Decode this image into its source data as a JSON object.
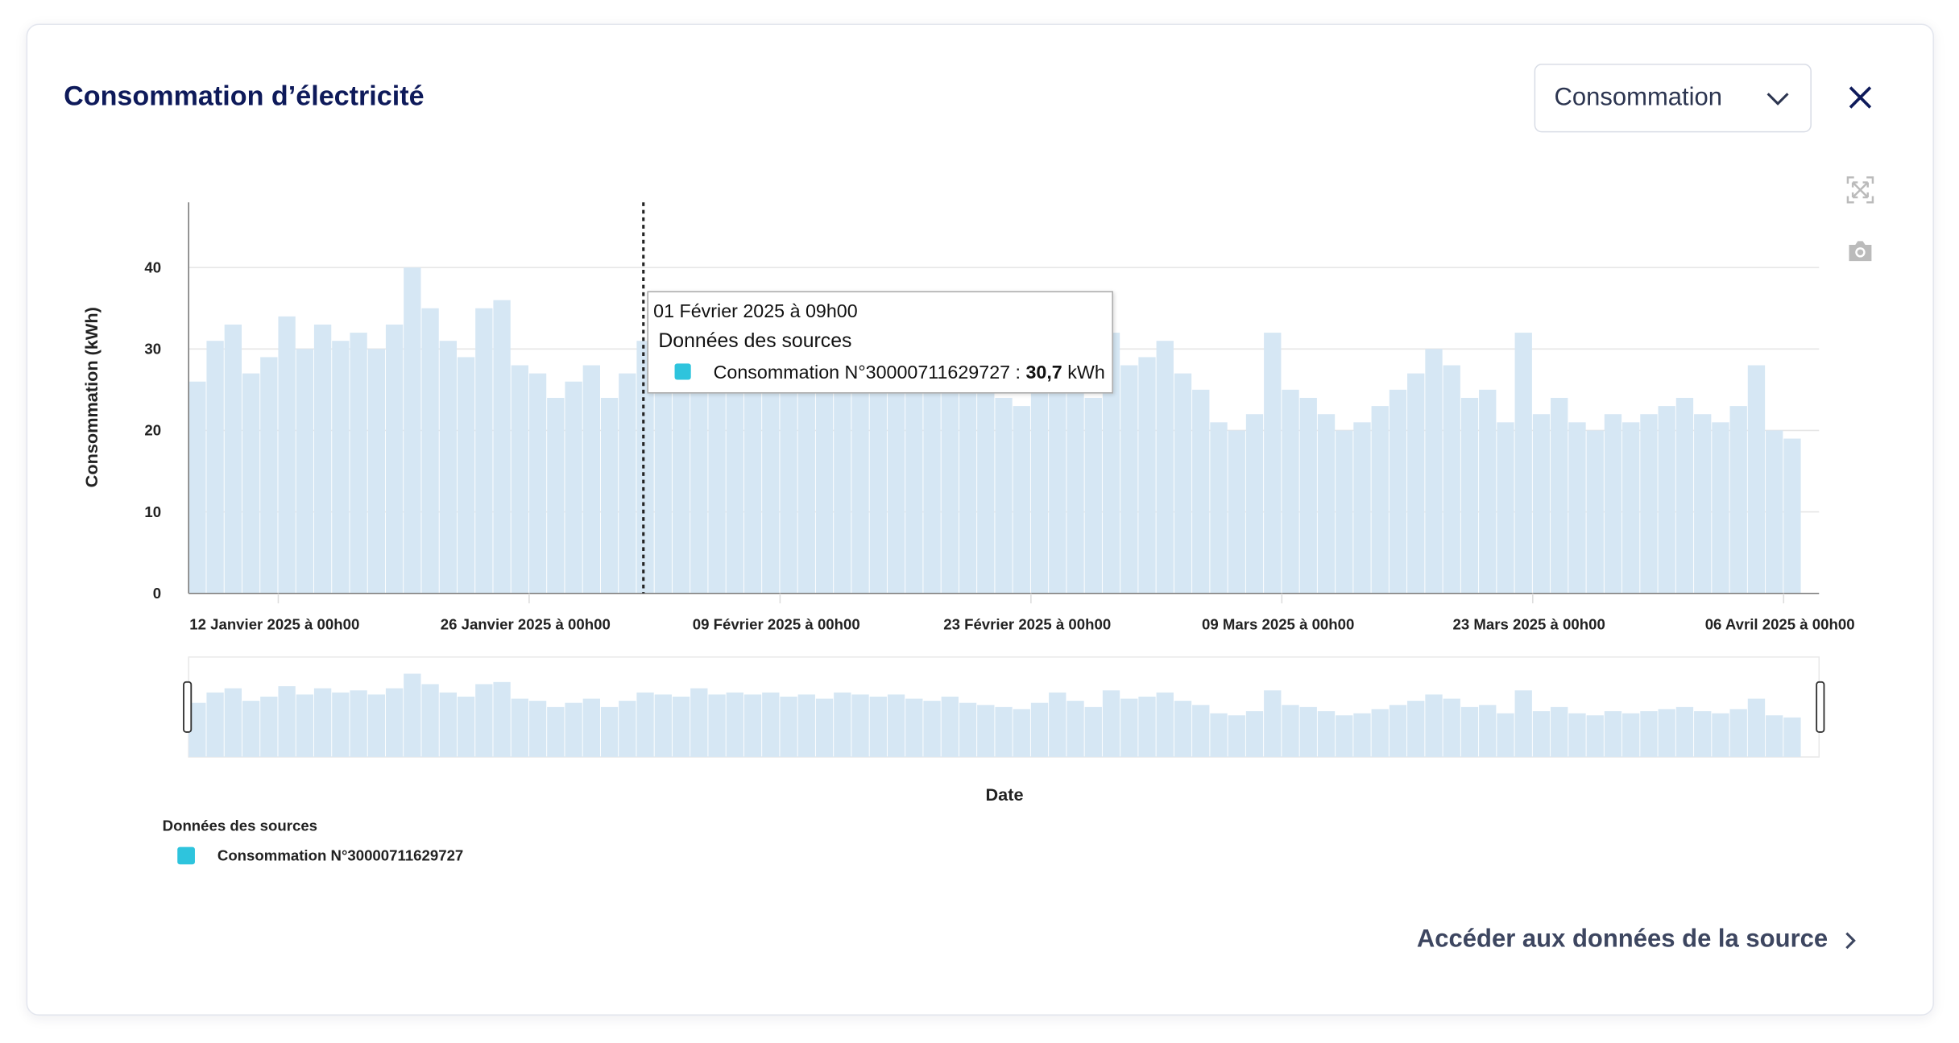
{
  "header": {
    "title": "Consommation d’électricité",
    "select_value": "Consommation"
  },
  "icons": {
    "close": "close-icon",
    "chevron": "chevron-down-icon",
    "autoscale": "autoscale-icon",
    "camera": "camera-icon",
    "link_chevron": "chevron-right-icon"
  },
  "tooltip": {
    "date": "01 Février 2025 à 09h00",
    "heading": "Données des sources",
    "series_label": "Consommation N°30000711629727 : ",
    "value": "30,7",
    "unit": " kWh"
  },
  "legend": {
    "title": "Données des sources",
    "items": [
      {
        "label": "Consommation N°30000711629727",
        "color": "#2ec4dd"
      }
    ]
  },
  "footer": {
    "link_label": "Accéder aux données de la source"
  },
  "chart_data": {
    "type": "bar",
    "title": "",
    "xlabel": "Date",
    "ylabel": "Consommation (kWh)",
    "ylim": [
      0,
      48
    ],
    "yticks": [
      "0",
      "10",
      "20",
      "30",
      "40"
    ],
    "xticks": [
      "12 Janvier 2025 à 00h00",
      "26 Janvier 2025 à 00h00",
      "09 Février 2025 à 00h00",
      "23 Février 2025 à 00h00",
      "09 Mars 2025 à 00h00",
      "23 Mars 2025 à 00h00",
      "06 Avril 2025 à 00h00"
    ],
    "grid": true,
    "bar_color": "#d6e7f4",
    "x_start": "2025-01-07",
    "x_end": "2025-04-07",
    "hover_x": "2025-02-01T09:00",
    "series": [
      {
        "name": "Consommation N°30000711629727",
        "x_unit": "day",
        "values": [
          26,
          31,
          33,
          27,
          29,
          34,
          30,
          33,
          31,
          32,
          30,
          33,
          40,
          35,
          31,
          29,
          35,
          36,
          28,
          27,
          24,
          26,
          28,
          24,
          27,
          31,
          30,
          29,
          33,
          30,
          31,
          30,
          31,
          29,
          30,
          28,
          31,
          30,
          29,
          30,
          28,
          27,
          29,
          26,
          25,
          24,
          23,
          26,
          31,
          27,
          24,
          32,
          28,
          29,
          31,
          27,
          25,
          21,
          20,
          22,
          32,
          25,
          24,
          22,
          20,
          21,
          23,
          25,
          27,
          30,
          28,
          24,
          25,
          21,
          32,
          22,
          24,
          21,
          20,
          22,
          21,
          22,
          23,
          24,
          22,
          21,
          23,
          28,
          20,
          19
        ]
      }
    ]
  }
}
